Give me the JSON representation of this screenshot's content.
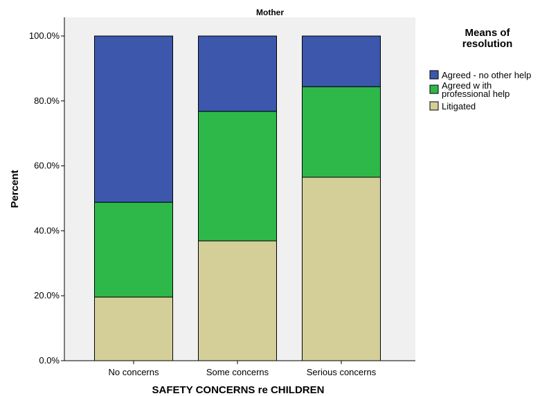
{
  "chart_data": {
    "type": "bar",
    "stacked": true,
    "title": "Mother",
    "xlabel": "SAFETY CONCERNS re CHILDREN",
    "ylabel": "Percent",
    "ylim": [
      0,
      100
    ],
    "yticks": [
      0,
      20,
      40,
      60,
      80,
      100
    ],
    "ytick_labels": [
      "0.0%",
      "20.0%",
      "40.0%",
      "60.0%",
      "80.0%",
      "100.0%"
    ],
    "categories": [
      "No concerns",
      "Some concerns",
      "Serious concerns"
    ],
    "legend_title": [
      "Means of",
      "resolution"
    ],
    "legend_position": "top-right",
    "grid": false,
    "series": [
      {
        "name": "Litigated",
        "color": "#d4cf98",
        "values": [
          19.6,
          36.9,
          56.5
        ]
      },
      {
        "name": "Agreed with professional help",
        "legend_lines": [
          "Agreed w ith",
          "professional help"
        ],
        "color": "#2eb84a",
        "values": [
          29.2,
          39.9,
          27.9
        ]
      },
      {
        "name": "Agreed - no other help",
        "color": "#3d57ad",
        "values": [
          51.2,
          23.2,
          15.6
        ]
      }
    ],
    "legend_order": [
      2,
      1,
      0
    ]
  }
}
